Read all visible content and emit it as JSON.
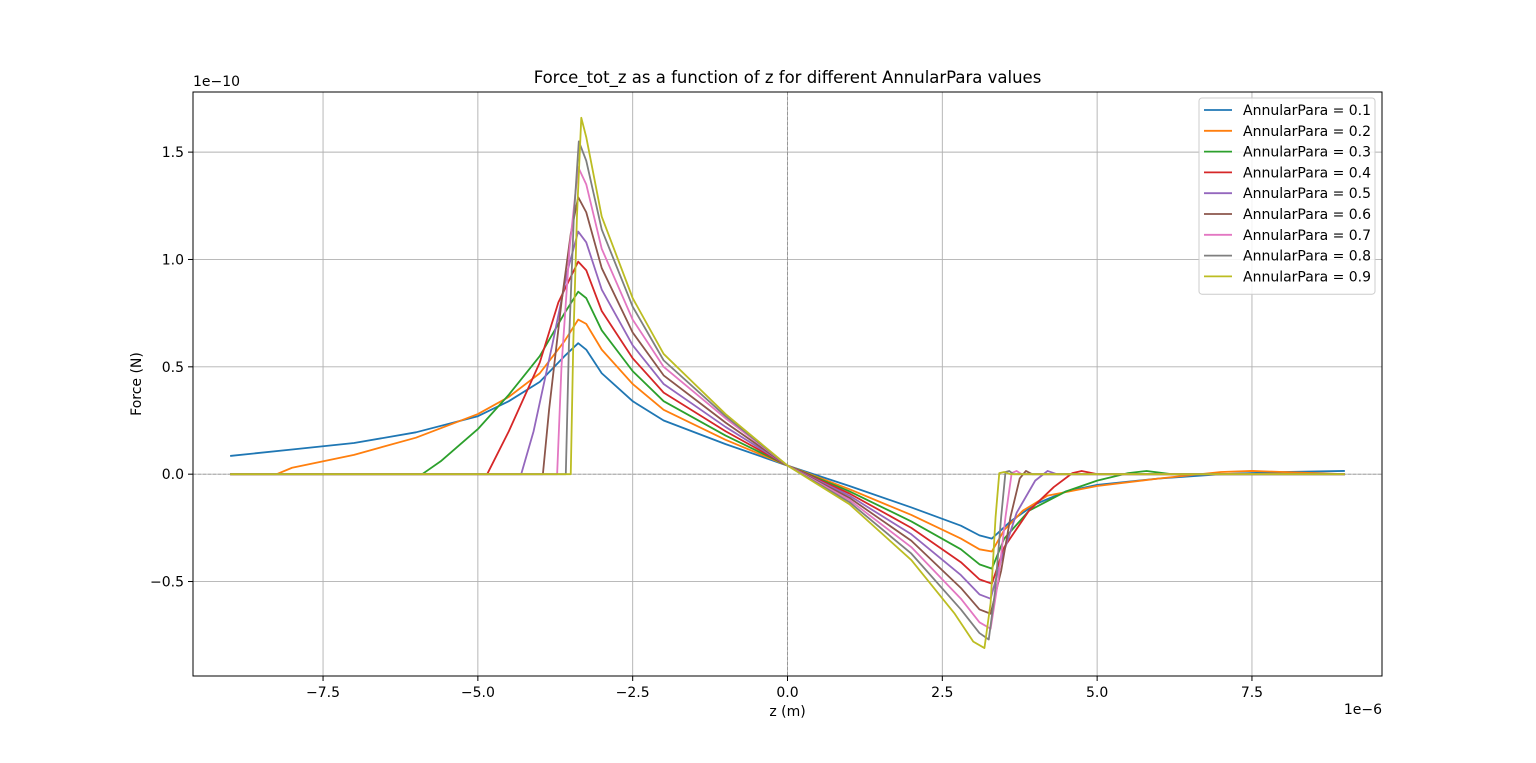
{
  "chart_data": {
    "type": "line",
    "title": "Force_tot_z as a function of z for different AnnularPara values",
    "xlabel": "z (m)",
    "ylabel": "Force (N)",
    "x_offset_text": "1e−6",
    "y_offset_text": "1e−10",
    "xlim": [
      -9.6,
      9.6
    ],
    "ylim": [
      -0.94,
      1.78
    ],
    "x_unit_scale": "1e-6",
    "y_unit_scale": "1e-10",
    "x_ticks": [
      -7.5,
      -5.0,
      -2.5,
      0.0,
      2.5,
      5.0,
      7.5
    ],
    "x_tick_labels": [
      "−7.5",
      "−5.0",
      "−2.5",
      "0.0",
      "2.5",
      "5.0",
      "7.5"
    ],
    "y_ticks": [
      -0.5,
      0.0,
      0.5,
      1.0,
      1.5
    ],
    "y_tick_labels": [
      "−0.5",
      "0.0",
      "0.5",
      "1.0",
      "1.5"
    ],
    "grid": true,
    "legend_position": "upper right",
    "reference_lines": {
      "x": 0,
      "y": 0
    },
    "series": [
      {
        "name": "AnnularPara = 0.1",
        "color": "#1f77b4",
        "points": [
          [
            -9,
            0.085
          ],
          [
            -8,
            0.115
          ],
          [
            -7,
            0.145
          ],
          [
            -6,
            0.195
          ],
          [
            -5,
            0.27
          ],
          [
            -4.5,
            0.34
          ],
          [
            -4,
            0.43
          ],
          [
            -3.6,
            0.55
          ],
          [
            -3.38,
            0.61
          ],
          [
            -3.25,
            0.58
          ],
          [
            -3,
            0.47
          ],
          [
            -2.5,
            0.34
          ],
          [
            -2,
            0.25
          ],
          [
            -1,
            0.14
          ],
          [
            0,
            0.04
          ],
          [
            1,
            -0.055
          ],
          [
            2,
            -0.155
          ],
          [
            2.8,
            -0.24
          ],
          [
            3.1,
            -0.285
          ],
          [
            3.3,
            -0.3
          ],
          [
            3.6,
            -0.22
          ],
          [
            4,
            -0.14
          ],
          [
            4.5,
            -0.08
          ],
          [
            5,
            -0.05
          ],
          [
            6,
            -0.02
          ],
          [
            7,
            0.0
          ],
          [
            8,
            0.01
          ],
          [
            9,
            0.015
          ]
        ]
      },
      {
        "name": "AnnularPara = 0.2",
        "color": "#ff7f0e",
        "points": [
          [
            -9,
            0.0
          ],
          [
            -8.25,
            0.0
          ],
          [
            -8,
            0.03
          ],
          [
            -7,
            0.09
          ],
          [
            -6,
            0.17
          ],
          [
            -5,
            0.28
          ],
          [
            -4.5,
            0.36
          ],
          [
            -4,
            0.47
          ],
          [
            -3.6,
            0.62
          ],
          [
            -3.38,
            0.72
          ],
          [
            -3.25,
            0.7
          ],
          [
            -3,
            0.58
          ],
          [
            -2.5,
            0.42
          ],
          [
            -2,
            0.3
          ],
          [
            -1,
            0.16
          ],
          [
            0,
            0.04
          ],
          [
            1,
            -0.07
          ],
          [
            2,
            -0.19
          ],
          [
            2.8,
            -0.3
          ],
          [
            3.1,
            -0.35
          ],
          [
            3.3,
            -0.36
          ],
          [
            3.5,
            -0.26
          ],
          [
            3.8,
            -0.17
          ],
          [
            4.2,
            -0.1
          ],
          [
            5,
            -0.055
          ],
          [
            6,
            -0.02
          ],
          [
            7,
            0.01
          ],
          [
            7.5,
            0.015
          ],
          [
            8,
            0.01
          ],
          [
            9,
            0.0
          ]
        ]
      },
      {
        "name": "AnnularPara = 0.3",
        "color": "#2ca02c",
        "points": [
          [
            -9,
            0.0
          ],
          [
            -5.9,
            0.0
          ],
          [
            -5.6,
            0.06
          ],
          [
            -5,
            0.21
          ],
          [
            -4.5,
            0.37
          ],
          [
            -4,
            0.55
          ],
          [
            -3.6,
            0.75
          ],
          [
            -3.38,
            0.85
          ],
          [
            -3.25,
            0.82
          ],
          [
            -3,
            0.67
          ],
          [
            -2.5,
            0.48
          ],
          [
            -2,
            0.34
          ],
          [
            -1,
            0.18
          ],
          [
            0,
            0.04
          ],
          [
            1,
            -0.08
          ],
          [
            2,
            -0.22
          ],
          [
            2.8,
            -0.35
          ],
          [
            3.1,
            -0.42
          ],
          [
            3.3,
            -0.44
          ],
          [
            3.5,
            -0.3
          ],
          [
            3.9,
            -0.17
          ],
          [
            4.5,
            -0.08
          ],
          [
            5,
            -0.03
          ],
          [
            5.5,
            0.005
          ],
          [
            5.8,
            0.015
          ],
          [
            6.2,
            0.0
          ],
          [
            9,
            0.0
          ]
        ]
      },
      {
        "name": "AnnularPara = 0.4",
        "color": "#d62728",
        "points": [
          [
            -9,
            0.0
          ],
          [
            -4.85,
            0.0
          ],
          [
            -4.5,
            0.2
          ],
          [
            -4,
            0.52
          ],
          [
            -3.7,
            0.8
          ],
          [
            -3.38,
            0.99
          ],
          [
            -3.25,
            0.95
          ],
          [
            -3,
            0.76
          ],
          [
            -2.5,
            0.54
          ],
          [
            -2,
            0.38
          ],
          [
            -1,
            0.2
          ],
          [
            0,
            0.04
          ],
          [
            1,
            -0.09
          ],
          [
            2,
            -0.25
          ],
          [
            2.8,
            -0.41
          ],
          [
            3.1,
            -0.49
          ],
          [
            3.3,
            -0.51
          ],
          [
            3.5,
            -0.34
          ],
          [
            3.9,
            -0.17
          ],
          [
            4.3,
            -0.06
          ],
          [
            4.6,
            0.005
          ],
          [
            4.75,
            0.015
          ],
          [
            5,
            0.0
          ],
          [
            9,
            0.0
          ]
        ]
      },
      {
        "name": "AnnularPara = 0.5",
        "color": "#9467bd",
        "points": [
          [
            -9,
            0.0
          ],
          [
            -4.3,
            0.0
          ],
          [
            -4.1,
            0.2
          ],
          [
            -3.8,
            0.6
          ],
          [
            -3.55,
            0.95
          ],
          [
            -3.38,
            1.13
          ],
          [
            -3.25,
            1.08
          ],
          [
            -3,
            0.86
          ],
          [
            -2.5,
            0.6
          ],
          [
            -2,
            0.42
          ],
          [
            -1,
            0.22
          ],
          [
            0,
            0.04
          ],
          [
            1,
            -0.1
          ],
          [
            2,
            -0.28
          ],
          [
            2.8,
            -0.47
          ],
          [
            3.1,
            -0.56
          ],
          [
            3.28,
            -0.58
          ],
          [
            3.45,
            -0.4
          ],
          [
            3.7,
            -0.18
          ],
          [
            4.0,
            -0.03
          ],
          [
            4.2,
            0.015
          ],
          [
            4.35,
            0.0
          ],
          [
            9,
            0.0
          ]
        ]
      },
      {
        "name": "AnnularPara = 0.6",
        "color": "#8c564b",
        "points": [
          [
            -9,
            0.0
          ],
          [
            -3.95,
            0.0
          ],
          [
            -3.85,
            0.3
          ],
          [
            -3.65,
            0.8
          ],
          [
            -3.5,
            1.12
          ],
          [
            -3.38,
            1.29
          ],
          [
            -3.25,
            1.22
          ],
          [
            -3,
            0.96
          ],
          [
            -2.5,
            0.66
          ],
          [
            -2,
            0.46
          ],
          [
            -1,
            0.24
          ],
          [
            0,
            0.04
          ],
          [
            1,
            -0.11
          ],
          [
            2,
            -0.31
          ],
          [
            2.8,
            -0.53
          ],
          [
            3.1,
            -0.63
          ],
          [
            3.28,
            -0.65
          ],
          [
            3.45,
            -0.45
          ],
          [
            3.6,
            -0.2
          ],
          [
            3.75,
            -0.02
          ],
          [
            3.85,
            0.015
          ],
          [
            3.95,
            0.0
          ],
          [
            9,
            0.0
          ]
        ]
      },
      {
        "name": "AnnularPara = 0.7",
        "color": "#e377c2",
        "points": [
          [
            -9,
            0.0
          ],
          [
            -3.72,
            0.0
          ],
          [
            -3.65,
            0.5
          ],
          [
            -3.52,
            1.05
          ],
          [
            -3.38,
            1.43
          ],
          [
            -3.25,
            1.35
          ],
          [
            -3,
            1.05
          ],
          [
            -2.5,
            0.72
          ],
          [
            -2,
            0.5
          ],
          [
            -1,
            0.26
          ],
          [
            0,
            0.04
          ],
          [
            1,
            -0.12
          ],
          [
            2,
            -0.34
          ],
          [
            2.8,
            -0.58
          ],
          [
            3.1,
            -0.69
          ],
          [
            3.28,
            -0.72
          ],
          [
            3.4,
            -0.5
          ],
          [
            3.52,
            -0.2
          ],
          [
            3.62,
            0.005
          ],
          [
            3.7,
            0.015
          ],
          [
            3.78,
            0.0
          ],
          [
            9,
            0.0
          ]
        ]
      },
      {
        "name": "AnnularPara = 0.8",
        "color": "#7f7f7f",
        "points": [
          [
            -9,
            0.0
          ],
          [
            -3.58,
            0.0
          ],
          [
            -3.53,
            0.6
          ],
          [
            -3.45,
            1.2
          ],
          [
            -3.37,
            1.55
          ],
          [
            -3.25,
            1.46
          ],
          [
            -3,
            1.14
          ],
          [
            -2.5,
            0.78
          ],
          [
            -2,
            0.53
          ],
          [
            -1,
            0.27
          ],
          [
            0,
            0.04
          ],
          [
            1,
            -0.13
          ],
          [
            2,
            -0.37
          ],
          [
            2.8,
            -0.63
          ],
          [
            3.1,
            -0.74
          ],
          [
            3.25,
            -0.77
          ],
          [
            3.35,
            -0.55
          ],
          [
            3.45,
            -0.2
          ],
          [
            3.52,
            0.01
          ],
          [
            3.58,
            0.015
          ],
          [
            3.65,
            0.0
          ],
          [
            9,
            0.0
          ]
        ]
      },
      {
        "name": "AnnularPara = 0.9",
        "color": "#bcbd22",
        "points": [
          [
            -9,
            0.0
          ],
          [
            -3.5,
            0.0
          ],
          [
            -3.46,
            0.6
          ],
          [
            -3.4,
            1.2
          ],
          [
            -3.33,
            1.66
          ],
          [
            -3.25,
            1.57
          ],
          [
            -3,
            1.2
          ],
          [
            -2.5,
            0.82
          ],
          [
            -2,
            0.56
          ],
          [
            -1,
            0.28
          ],
          [
            0,
            0.04
          ],
          [
            1,
            -0.14
          ],
          [
            2,
            -0.4
          ],
          [
            2.7,
            -0.65
          ],
          [
            3.0,
            -0.78
          ],
          [
            3.18,
            -0.81
          ],
          [
            3.28,
            -0.6
          ],
          [
            3.36,
            -0.2
          ],
          [
            3.42,
            0.005
          ],
          [
            3.5,
            0.01
          ],
          [
            3.6,
            0.0
          ],
          [
            9,
            0.0
          ]
        ]
      }
    ]
  }
}
